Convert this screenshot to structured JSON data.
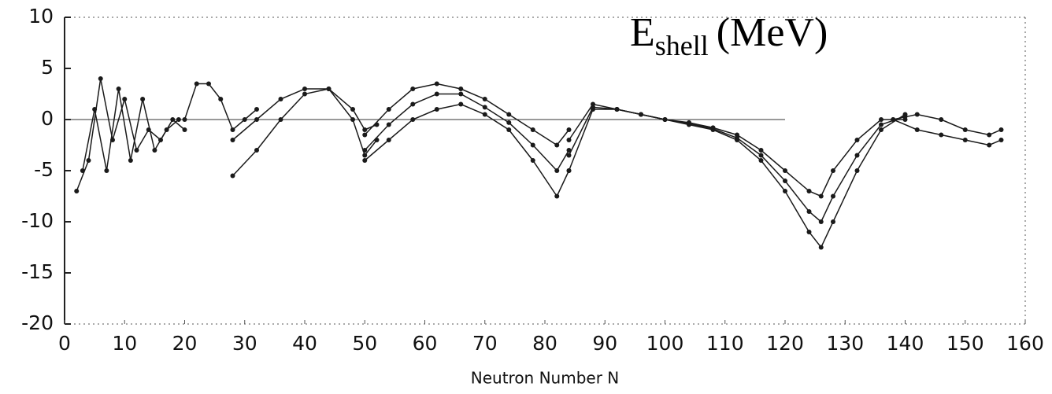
{
  "chart_data": {
    "type": "line",
    "annotation": {
      "main": "E",
      "sub": "shell",
      "rest": "(MeV)"
    },
    "xlabel": "Neutron Number  N",
    "color": "#1a1a1a",
    "xlim": [
      0,
      160
    ],
    "xticks": [
      0,
      10,
      20,
      30,
      40,
      50,
      60,
      70,
      80,
      90,
      100,
      110,
      120,
      130,
      140,
      150,
      160
    ],
    "ylim": [
      -20,
      10
    ],
    "yticks": [
      10,
      5,
      0,
      -5,
      -10,
      -15,
      -20
    ],
    "series": [
      {
        "x": [
          2,
          4,
          6,
          8,
          10,
          12,
          14,
          16,
          18,
          20
        ],
        "values": [
          -7,
          -4,
          4,
          -2,
          2,
          -3,
          -1,
          -2,
          0,
          -1
        ]
      },
      {
        "x": [
          3,
          5,
          7,
          9,
          11,
          13,
          15,
          17,
          19
        ],
        "values": [
          -5,
          1,
          -5,
          3,
          -4,
          2,
          -3,
          -1,
          0
        ]
      },
      {
        "x": [
          20,
          22,
          24,
          26,
          28,
          30,
          32
        ],
        "values": [
          0,
          3.5,
          3.5,
          2,
          -1,
          0,
          1
        ]
      },
      {
        "x": [
          28,
          32,
          36,
          40,
          44,
          48,
          50,
          52
        ],
        "values": [
          -5.5,
          -3,
          0,
          2.5,
          3,
          0,
          -3.5,
          -2
        ]
      },
      {
        "x": [
          28,
          32,
          36,
          40,
          44,
          48,
          50,
          52
        ],
        "values": [
          -2,
          0,
          2,
          3,
          3,
          1,
          -1,
          -0.5
        ]
      },
      {
        "x": [
          50,
          54,
          58,
          62,
          66,
          70,
          74,
          78,
          82,
          84
        ],
        "values": [
          -4,
          -2,
          0,
          1,
          1.5,
          0.5,
          -1,
          -4,
          -7.5,
          -5
        ]
      },
      {
        "x": [
          50,
          54,
          58,
          62,
          66,
          70,
          74,
          78,
          82,
          84
        ],
        "values": [
          -1.5,
          1,
          3,
          3.5,
          3,
          2,
          0.5,
          -1,
          -2.5,
          -1
        ]
      },
      {
        "x": [
          50,
          54,
          58,
          62,
          66,
          70,
          74,
          78,
          82,
          84
        ],
        "values": [
          -3,
          -0.5,
          1.5,
          2.5,
          2.5,
          1.2,
          -0.3,
          -2.5,
          -5,
          -3
        ]
      },
      {
        "x": [
          84,
          88,
          92,
          96,
          100,
          104,
          108,
          112,
          116,
          120,
          124,
          126,
          128,
          132,
          136,
          140
        ],
        "values": [
          -2,
          1.5,
          1,
          0.5,
          0,
          -0.3,
          -0.8,
          -1.5,
          -3,
          -5,
          -7,
          -7.5,
          -5,
          -2,
          0,
          0
        ]
      },
      {
        "x": [
          84,
          88,
          92,
          96,
          100,
          104,
          108,
          112,
          116,
          120,
          124,
          126,
          128,
          132,
          136,
          140
        ],
        "values": [
          -5,
          1,
          1,
          0.5,
          0,
          -0.5,
          -1,
          -2,
          -4,
          -7,
          -11,
          -12.5,
          -10,
          -5,
          -1,
          0.5
        ]
      },
      {
        "x": [
          84,
          88,
          92,
          96,
          100,
          104,
          108,
          112,
          116,
          120,
          124,
          126,
          128,
          132,
          136,
          140
        ],
        "values": [
          -3.5,
          1.2,
          1,
          0.5,
          0,
          -0.4,
          -0.9,
          -1.8,
          -3.5,
          -6,
          -9,
          -10,
          -7.5,
          -3.5,
          -0.5,
          0.3
        ]
      },
      {
        "x": [
          138,
          142,
          146,
          150,
          154,
          156
        ],
        "values": [
          0,
          0.5,
          0,
          -1,
          -1.5,
          -1
        ]
      },
      {
        "x": [
          138,
          142,
          146,
          150,
          154,
          156
        ],
        "values": [
          0,
          -1,
          -1.5,
          -2,
          -2.5,
          -2
        ]
      }
    ]
  }
}
